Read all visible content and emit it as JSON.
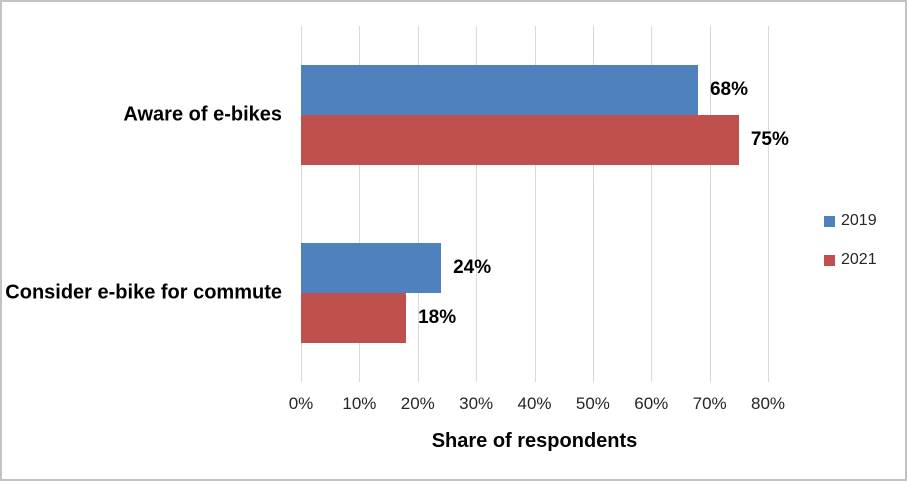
{
  "chart_data": {
    "type": "bar",
    "orientation": "horizontal",
    "title": "",
    "xlabel": "Share of respondents",
    "ylabel": "",
    "categories": [
      "Aware of e-bikes",
      "Consider e-bike for commute"
    ],
    "series": [
      {
        "name": "2019",
        "color": "#4F81BD",
        "values": [
          68,
          24
        ],
        "labels": [
          "68%",
          "24%"
        ]
      },
      {
        "name": "2021",
        "color": "#C0504D",
        "values": [
          75,
          18
        ],
        "labels": [
          "75%",
          "18%"
        ]
      }
    ],
    "xlim": [
      0,
      80
    ],
    "x_ticks": [
      0,
      10,
      20,
      30,
      40,
      50,
      60,
      70,
      80
    ],
    "x_tick_labels": [
      "0%",
      "10%",
      "20%",
      "30%",
      "40%",
      "50%",
      "60%",
      "70%",
      "80%"
    ],
    "grid": "vertical",
    "gridline_color": "#D9D9D9",
    "legend_position": "right"
  }
}
